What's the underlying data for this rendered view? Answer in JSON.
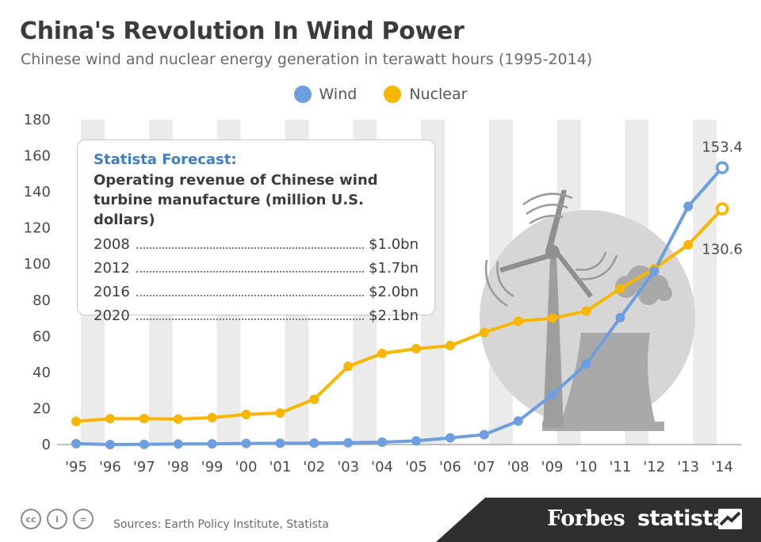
{
  "header": {
    "title": "China's Revolution In Wind Power",
    "subtitle": "Chinese wind and nuclear energy generation in terawatt hours (1995-2014)"
  },
  "forecast": {
    "heading": "Statista Forecast:",
    "description_line1": "Operating revenue of Chinese wind",
    "description_line2": "turbine manufacture (million U.S. dollars)",
    "rows": [
      {
        "year": "2008",
        "value": "$1.0bn"
      },
      {
        "year": "2012",
        "value": "$1.7bn"
      },
      {
        "year": "2016",
        "value": "$2.0bn"
      },
      {
        "year": "2020",
        "value": "$2.1bn"
      }
    ]
  },
  "footer": {
    "source": "Sources: Earth Policy Institute, Statista",
    "brand_forbes": "Forbes",
    "brand_statista": "statista"
  },
  "colors": {
    "wind": "#6d9ee0",
    "nuclear": "#f7b600",
    "stripe": "#ebebeb",
    "illustration": "#b9b9b9"
  },
  "chart_data": {
    "type": "line",
    "title": "China's Revolution In Wind Power",
    "subtitle": "Chinese wind and nuclear energy generation in terawatt hours (1995-2014)",
    "categories": [
      "'95",
      "'96",
      "'97",
      "'98",
      "'99",
      "'00",
      "'01",
      "'02",
      "'03",
      "'04",
      "'05",
      "'06",
      "'07",
      "'08",
      "'09",
      "'10",
      "'11",
      "'12",
      "'13",
      "'14"
    ],
    "ylim": [
      0,
      180
    ],
    "yticks": [
      0,
      20,
      40,
      60,
      80,
      100,
      120,
      140,
      160,
      180
    ],
    "legend_position": "top-center",
    "series": [
      {
        "name": "Wind",
        "color": "#6d9ee0",
        "values": [
          0.5,
          0,
          0.1,
          0.3,
          0.4,
          0.6,
          0.7,
          0.8,
          1.0,
          1.3,
          2.0,
          3.7,
          5.5,
          13,
          27.5,
          44.6,
          70.3,
          96,
          132,
          153.4
        ],
        "end_label": "153.4"
      },
      {
        "name": "Nuclear",
        "color": "#f7b600",
        "values": [
          12.8,
          14.3,
          14.4,
          14.1,
          14.9,
          16.7,
          17.5,
          25.1,
          43.3,
          50.5,
          53.1,
          54.8,
          62.1,
          68.3,
          70.0,
          73.9,
          86.4,
          97.4,
          110.7,
          130.6
        ],
        "end_label": "130.6"
      }
    ]
  }
}
